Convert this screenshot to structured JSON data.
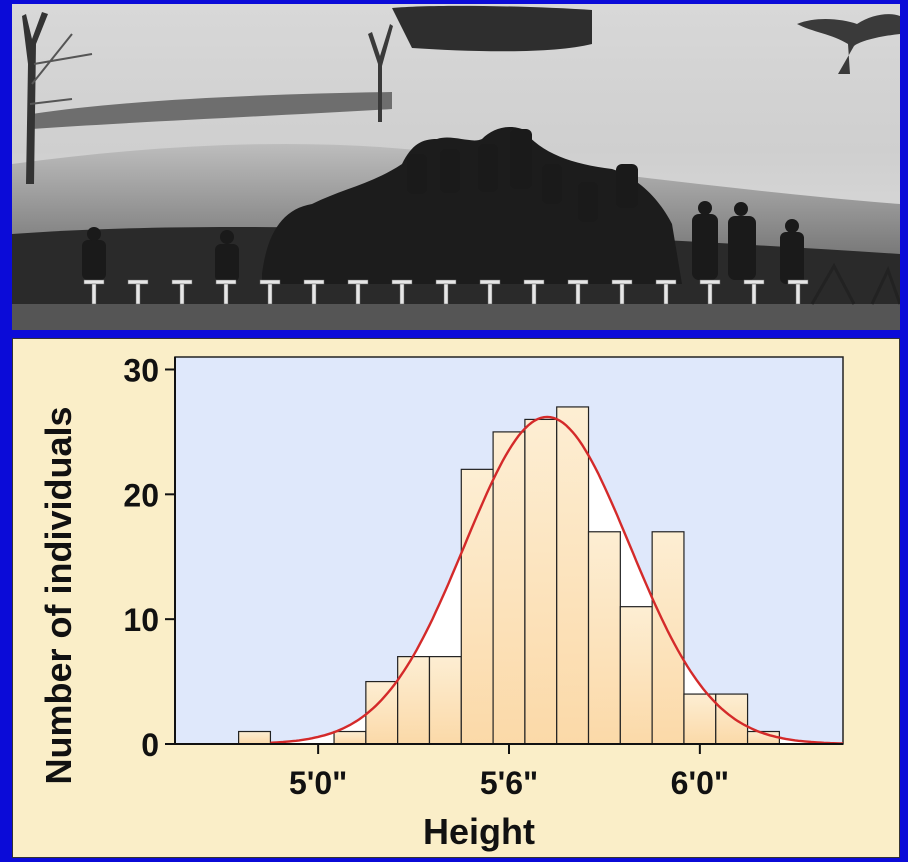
{
  "photo": {
    "icon": "cadets-group-photo"
  },
  "chart_data": {
    "type": "bar",
    "xlabel": "Height",
    "ylabel": "Number of individuals",
    "x_unit": "inches",
    "bin_width_in": 1,
    "bin_centers_in": [
      58,
      59,
      60,
      61,
      62,
      63,
      64,
      65,
      66,
      67,
      68,
      69,
      70,
      71,
      72,
      73,
      74,
      75
    ],
    "values": [
      1,
      0,
      0,
      1,
      5,
      7,
      7,
      22,
      25,
      26,
      27,
      17,
      11,
      17,
      4,
      4,
      1,
      0
    ],
    "xlim": [
      55.5,
      76.5
    ],
    "ylim": [
      0,
      31
    ],
    "y_ticks": [
      0,
      10,
      20,
      30
    ],
    "x_ticks": [
      {
        "value": 60,
        "label": "5'0\""
      },
      {
        "value": 66,
        "label": "5'6\""
      },
      {
        "value": 72,
        "label": "6'0\""
      }
    ],
    "fit_curve": {
      "type": "normal",
      "mean": 67.2,
      "sd": 2.6,
      "peak": 26.2,
      "color": "#d42a2a"
    },
    "bar_color": "#fbd9a8",
    "plot_background": "#dfe8fb",
    "grid": false,
    "legend": "none"
  }
}
